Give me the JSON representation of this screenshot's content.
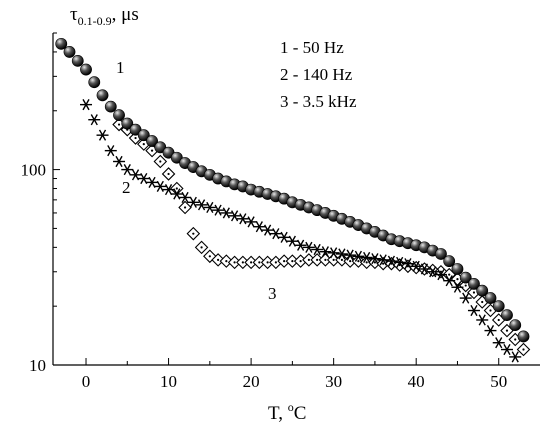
{
  "chart_data": {
    "type": "scatter",
    "ylabel": "τ",
    "ylabel_sub": "0.1-0.9",
    "ylabel_unit": ", μs",
    "xlabel_prefix": "T, ",
    "xlabel_sup": "o",
    "xlabel_suffix": "C",
    "xlim": [
      -4,
      55
    ],
    "ylim": [
      10,
      500
    ],
    "yscale": "log",
    "x_ticks": [
      0,
      10,
      20,
      30,
      40,
      50
    ],
    "y_ticks": [
      10,
      100
    ],
    "legend": [
      "1 - 50 Hz",
      "2 - 140 Hz",
      "3 - 3.5 kHz"
    ],
    "series_labels": [
      "1",
      "2",
      "3"
    ],
    "series": [
      {
        "name": "1",
        "marker": "sphere",
        "x": [
          -3,
          -2,
          -1,
          0,
          1,
          2,
          3,
          4,
          5,
          6,
          7,
          8,
          9,
          10,
          11,
          12,
          13,
          14,
          15,
          16,
          17,
          18,
          19,
          20,
          21,
          22,
          23,
          24,
          25,
          26,
          27,
          28,
          29,
          30,
          31,
          32,
          33,
          34,
          35,
          36,
          37,
          38,
          39,
          40,
          41,
          42,
          43,
          44,
          45,
          46,
          47,
          48,
          49,
          50,
          51,
          52,
          53
        ],
        "y": [
          440,
          400,
          360,
          325,
          280,
          240,
          210,
          190,
          172,
          160,
          150,
          140,
          130,
          122,
          115,
          108,
          103,
          98,
          94,
          90,
          87,
          84,
          82,
          79,
          77,
          75,
          73,
          71,
          68,
          66,
          64,
          62,
          60,
          58,
          56,
          54,
          52,
          50,
          48,
          46,
          44,
          43,
          42,
          41,
          40,
          38.5,
          37,
          34,
          31,
          28,
          26,
          24,
          22,
          20,
          18,
          16,
          14
        ]
      },
      {
        "name": "2",
        "marker": "asterisk",
        "x": [
          0,
          1,
          2,
          3,
          4,
          5,
          6,
          7,
          8,
          9,
          10,
          11,
          12,
          13,
          14,
          15,
          16,
          17,
          18,
          19,
          20,
          21,
          22,
          23,
          24,
          25,
          26,
          27,
          28,
          29,
          30,
          31,
          32,
          33,
          34,
          35,
          36,
          37,
          38,
          39,
          40,
          41,
          42,
          43,
          44,
          45,
          46,
          47,
          48,
          49,
          50,
          51,
          52
        ],
        "y": [
          215,
          180,
          150,
          125,
          110,
          100,
          94,
          90,
          86,
          82,
          79,
          75,
          72,
          68,
          66,
          64,
          62,
          60,
          58,
          56,
          54,
          51,
          49,
          47,
          45,
          43,
          41,
          40,
          39,
          38,
          37.5,
          37,
          36.5,
          36,
          35.5,
          35,
          34.5,
          34,
          33.5,
          33,
          32,
          31,
          30,
          29,
          27,
          25,
          22,
          19,
          17,
          15,
          13,
          12,
          11
        ]
      },
      {
        "name": "3",
        "marker": "diamond-dot",
        "x": [
          4,
          5,
          6,
          7,
          8,
          9,
          10,
          11,
          12,
          13,
          14,
          15,
          16,
          17,
          18,
          19,
          20,
          21,
          22,
          23,
          24,
          25,
          26,
          27,
          28,
          29,
          30,
          31,
          32,
          33,
          34,
          35,
          36,
          37,
          38,
          39,
          40,
          41,
          42,
          43,
          44,
          45,
          46,
          47,
          48,
          49,
          50,
          51,
          52,
          53
        ],
        "y": [
          170,
          160,
          145,
          135,
          125,
          110,
          95,
          80,
          64,
          47,
          40,
          36,
          34.5,
          34,
          33.5,
          33.5,
          33.5,
          33.5,
          33.5,
          33.5,
          34,
          34,
          34,
          34.5,
          34.5,
          34.5,
          34.5,
          34.5,
          34,
          34,
          33.5,
          33.5,
          33,
          33,
          32.5,
          32,
          31.5,
          31,
          30.5,
          30,
          29,
          27.5,
          25.5,
          23.5,
          21,
          19,
          17,
          15,
          13.5,
          12
        ]
      }
    ]
  }
}
